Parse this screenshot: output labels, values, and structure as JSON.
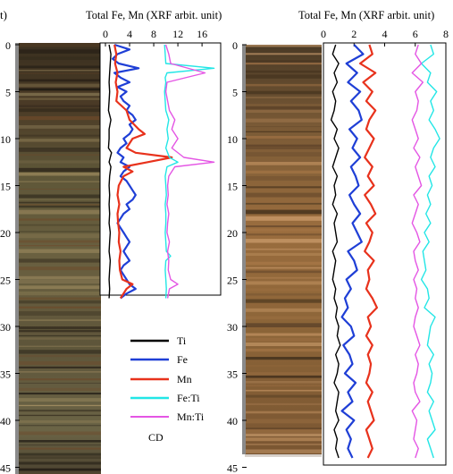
{
  "figure": {
    "left_label_fragment": "t)",
    "x_axis_title": "Total Fe, Mn (XRF arbit. unit)",
    "legend_caption": "CD"
  },
  "colors": {
    "Ti": "#000000",
    "Fe": "#1f3fd6",
    "Mn": "#e8321c",
    "Fe:Ti": "#22e6e6",
    "Mn:Ti": "#e455e4"
  },
  "chart_data": [
    {
      "type": "line",
      "id": "left-core",
      "title": "",
      "xlabel": "Total Fe, Mn (XRF arbit. unit)",
      "ylabel": "",
      "y_axis": "depth",
      "y_inverted": true,
      "ylim": [
        0,
        46
      ],
      "y_ticks": [
        0,
        5,
        10,
        15,
        20,
        25,
        30,
        35,
        40,
        45
      ],
      "xlim": [
        0,
        18.5
      ],
      "x_ticks": [
        0,
        4,
        8,
        12,
        16
      ],
      "grid": false,
      "legend": [
        "Ti",
        "Fe",
        "Mn",
        "Fe:Ti",
        "Mn:Ti"
      ],
      "legend_position": "below plot",
      "series": [
        {
          "name": "Ti",
          "depth": [
            0,
            1,
            2,
            3,
            4,
            5,
            6,
            7,
            8,
            9,
            10,
            11,
            11.5,
            12,
            12.5,
            13,
            14,
            15,
            16,
            17,
            18,
            19,
            20,
            21,
            22,
            23,
            24,
            25,
            26,
            27
          ],
          "value": [
            0.6,
            0.9,
            0.8,
            0.7,
            0.6,
            0.7,
            0.6,
            0.5,
            0.9,
            0.6,
            0.6,
            0.5,
            1.0,
            0.8,
            0.6,
            0.9,
            0.7,
            0.6,
            0.7,
            0.6,
            0.7,
            0.6,
            0.8,
            0.7,
            0.6,
            0.8,
            0.7,
            0.6,
            0.7,
            0.6
          ]
        },
        {
          "name": "Fe",
          "depth": [
            0,
            0.5,
            1,
            1.5,
            2,
            2.5,
            3,
            3.5,
            4,
            4.5,
            5,
            5.5,
            6,
            6.5,
            7,
            7.5,
            8,
            8.5,
            9,
            9.5,
            10,
            10.5,
            11,
            11.5,
            12,
            12.5,
            13,
            13.5,
            14,
            14.5,
            15,
            15.5,
            16,
            16.5,
            17,
            17.5,
            18,
            18.5,
            19,
            19.5,
            20,
            20.5,
            21,
            21.5,
            22,
            22.5,
            23,
            23.5,
            24,
            24.5,
            25,
            25.5,
            26,
            26.5,
            27
          ],
          "value": [
            1.5,
            4.0,
            2.0,
            1.2,
            2.2,
            5.5,
            1.5,
            2.5,
            4.0,
            2.0,
            3.5,
            2.5,
            3.0,
            4.0,
            3.5,
            4.5,
            5.0,
            4.0,
            4.5,
            4.0,
            3.0,
            3.5,
            2.5,
            2.0,
            3.0,
            2.5,
            4.0,
            3.0,
            2.5,
            3.5,
            4.0,
            4.5,
            5.0,
            4.5,
            3.5,
            4.0,
            3.0,
            2.5,
            2.0,
            2.5,
            3.0,
            3.5,
            4.0,
            3.5,
            3.0,
            3.5,
            4.0,
            3.0,
            2.5,
            3.0,
            3.5,
            4.0,
            5.0,
            3.5,
            2.5
          ]
        },
        {
          "name": "Mn",
          "depth": [
            0,
            1,
            2,
            3,
            4,
            5,
            6,
            7,
            8,
            9,
            9.5,
            10,
            11,
            11.5,
            12,
            12.5,
            13,
            13.5,
            14,
            15,
            16,
            17,
            18,
            19,
            20,
            21,
            22,
            23,
            24,
            25,
            25.5,
            26,
            27
          ],
          "value": [
            1.5,
            1.8,
            1.6,
            2.0,
            1.7,
            2.0,
            1.8,
            3.5,
            4.0,
            5.5,
            6.5,
            4.5,
            3.5,
            5.0,
            11.0,
            7.0,
            3.0,
            4.5,
            3.0,
            2.2,
            2.0,
            2.3,
            2.0,
            2.1,
            2.3,
            2.2,
            2.5,
            2.3,
            2.4,
            2.8,
            4.5,
            3.5,
            2.5
          ]
        },
        {
          "name": "Fe:Ti",
          "depth": [
            0,
            1,
            2,
            2.5,
            3,
            3.5,
            4,
            5,
            6,
            7,
            8,
            9,
            10,
            11,
            12,
            12.5,
            13,
            14,
            15,
            16,
            17,
            18,
            19,
            20,
            21,
            22,
            22.5,
            23,
            24,
            25,
            26,
            27
          ],
          "value": [
            9.8,
            9.9,
            10.0,
            18.0,
            10.2,
            9.9,
            10.0,
            9.8,
            9.9,
            10.0,
            10.5,
            10.2,
            10.4,
            10.0,
            10.6,
            12.0,
            10.2,
            9.9,
            10.0,
            10.1,
            9.9,
            10.0,
            10.0,
            9.9,
            10.0,
            10.1,
            10.8,
            10.0,
            9.9,
            10.0,
            10.1,
            10.0
          ]
        },
        {
          "name": "Mn:Ti",
          "depth": [
            0,
            1,
            2,
            3,
            4,
            5,
            6,
            7,
            8,
            9,
            10,
            11,
            12,
            12.5,
            13,
            14,
            15,
            16,
            17,
            18,
            19,
            20,
            21,
            22,
            23,
            24,
            25,
            25.5,
            26,
            27
          ],
          "value": [
            10.0,
            10.5,
            10.8,
            16.5,
            10.2,
            10.0,
            10.3,
            10.6,
            11.5,
            11.0,
            12.0,
            11.0,
            13.0,
            18.0,
            11.5,
            10.5,
            10.3,
            10.4,
            10.2,
            10.5,
            10.3,
            10.2,
            10.6,
            10.3,
            10.5,
            10.4,
            10.8,
            12.0,
            10.6,
            10.3
          ]
        }
      ]
    },
    {
      "type": "line",
      "id": "right-core",
      "title": "",
      "xlabel": "Total Fe, Mn (XRF arbit. unit)",
      "ylabel": "",
      "y_axis": "depth",
      "y_inverted": true,
      "ylim": [
        0,
        45
      ],
      "y_ticks": [
        0,
        5,
        10,
        15,
        20,
        25,
        30,
        35,
        40,
        45
      ],
      "xlim": [
        0,
        8
      ],
      "x_ticks": [
        0,
        2,
        4,
        6,
        8
      ],
      "grid": false,
      "series": [
        {
          "name": "Ti",
          "depth": [
            0,
            1,
            2,
            3,
            4,
            5,
            6,
            7,
            8,
            9,
            10,
            11,
            12,
            13,
            14,
            15,
            16,
            17,
            18,
            19,
            20,
            21,
            22,
            23,
            24,
            25,
            26,
            27,
            28,
            29,
            30,
            31,
            32,
            33,
            34,
            35,
            36,
            37,
            38,
            39,
            40,
            41,
            42,
            43,
            44
          ],
          "value": [
            0.8,
            0.6,
            1.0,
            0.7,
            0.9,
            0.6,
            0.8,
            0.7,
            0.5,
            0.9,
            0.7,
            1.0,
            0.8,
            0.6,
            0.9,
            0.7,
            0.8,
            0.6,
            0.9,
            0.7,
            0.8,
            0.9,
            0.6,
            0.8,
            0.7,
            0.6,
            0.8,
            0.7,
            0.9,
            0.8,
            1.0,
            0.9,
            1.1,
            0.8,
            1.0,
            0.9,
            0.7,
            1.0,
            0.9,
            0.8,
            1.0,
            0.7,
            0.9,
            0.8,
            1.0
          ]
        },
        {
          "name": "Fe",
          "depth": [
            0,
            1,
            2,
            3,
            4,
            5,
            6,
            7,
            8,
            9,
            10,
            11,
            12,
            13,
            14,
            15,
            16,
            17,
            18,
            19,
            20,
            21,
            22,
            23,
            24,
            25,
            26,
            27,
            28,
            29,
            30,
            31,
            32,
            33,
            34,
            35,
            36,
            37,
            38,
            39,
            40,
            41,
            42,
            43,
            44
          ],
          "value": [
            2.0,
            2.6,
            1.5,
            2.2,
            1.6,
            2.4,
            1.8,
            2.3,
            2.5,
            1.7,
            2.2,
            1.9,
            2.4,
            1.8,
            2.1,
            2.3,
            1.7,
            2.0,
            2.4,
            1.9,
            2.2,
            2.5,
            1.6,
            2.0,
            2.2,
            1.5,
            1.8,
            1.4,
            1.6,
            1.2,
            1.8,
            2.0,
            1.3,
            1.7,
            1.9,
            1.4,
            2.1,
            1.6,
            1.9,
            1.2,
            2.0,
            1.5,
            1.8,
            1.6,
            1.9
          ]
        },
        {
          "name": "Mn",
          "depth": [
            0,
            1,
            2,
            3,
            4,
            5,
            6,
            7,
            8,
            9,
            10,
            11,
            12,
            13,
            14,
            15,
            16,
            17,
            18,
            19,
            20,
            21,
            22,
            23,
            24,
            25,
            26,
            27,
            28,
            29,
            30,
            31,
            32,
            33,
            34,
            35,
            36,
            37,
            38,
            39,
            40,
            41,
            42,
            43,
            44
          ],
          "value": [
            3.0,
            3.2,
            2.4,
            3.4,
            2.6,
            3.2,
            2.8,
            3.4,
            3.0,
            2.8,
            3.3,
            3.0,
            2.7,
            3.2,
            2.9,
            3.3,
            2.7,
            3.1,
            3.4,
            2.8,
            3.2,
            3.0,
            2.7,
            3.3,
            2.9,
            3.0,
            2.8,
            3.2,
            3.5,
            2.9,
            3.1,
            2.8,
            3.2,
            2.9,
            3.1,
            3.0,
            2.8,
            3.2,
            2.9,
            3.1,
            3.3,
            2.8,
            3.0,
            3.2,
            2.9
          ]
        },
        {
          "name": "Fe:Ti",
          "depth": [
            0,
            1,
            2,
            3,
            4,
            5,
            6,
            7,
            8,
            9,
            10,
            11,
            12,
            13,
            14,
            15,
            16,
            17,
            18,
            19,
            20,
            21,
            22,
            23,
            24,
            25,
            26,
            27,
            28,
            29,
            30,
            31,
            32,
            33,
            34,
            35,
            36,
            37,
            38,
            39,
            40,
            41,
            42,
            43,
            44
          ],
          "value": [
            7.0,
            7.2,
            6.4,
            7.0,
            6.8,
            7.4,
            7.0,
            7.2,
            6.9,
            7.3,
            7.6,
            7.2,
            7.0,
            7.3,
            6.9,
            7.1,
            6.8,
            7.0,
            6.7,
            7.0,
            6.6,
            6.9,
            6.5,
            6.6,
            6.7,
            6.4,
            6.8,
            6.9,
            6.6,
            7.3,
            7.0,
            6.9,
            6.8,
            7.2,
            6.9,
            7.1,
            7.0,
            6.8,
            7.2,
            6.9,
            7.1,
            7.3,
            6.8,
            7.0,
            7.2
          ]
        },
        {
          "name": "Mn:Ti",
          "depth": [
            0,
            1,
            2,
            3,
            4,
            5,
            6,
            7,
            8,
            9,
            10,
            11,
            12,
            13,
            14,
            15,
            16,
            17,
            18,
            19,
            20,
            21,
            22,
            23,
            24,
            25,
            26,
            27,
            28,
            29,
            30,
            31,
            32,
            33,
            34,
            35,
            36,
            37,
            38,
            39,
            40,
            41,
            42,
            43,
            44
          ],
          "value": [
            6.2,
            6.0,
            6.4,
            5.8,
            6.5,
            6.0,
            6.2,
            6.1,
            5.8,
            6.0,
            6.2,
            5.9,
            6.3,
            6.0,
            6.2,
            6.4,
            5.9,
            6.2,
            6.0,
            5.8,
            6.1,
            6.3,
            5.9,
            6.0,
            6.2,
            5.9,
            6.1,
            6.0,
            6.2,
            6.0,
            5.9,
            6.1,
            6.3,
            6.0,
            6.2,
            6.1,
            5.9,
            6.0,
            6.3,
            5.8,
            6.1,
            6.0,
            5.9,
            6.2,
            6.0
          ]
        }
      ]
    }
  ]
}
